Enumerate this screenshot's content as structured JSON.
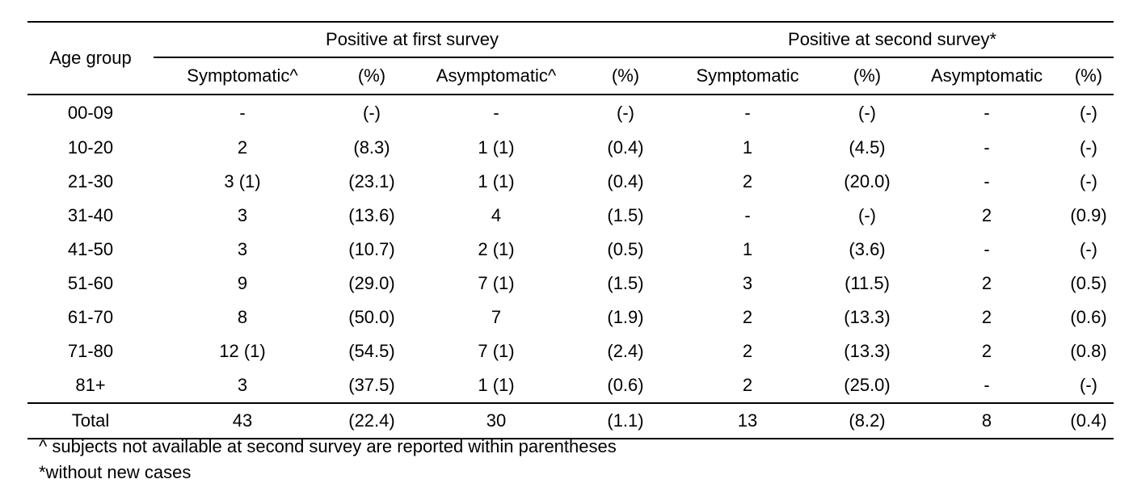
{
  "table": {
    "header": {
      "age_group": "Age group",
      "group_first": "Positive at first survey",
      "group_second": "Positive at second survey*",
      "sub": [
        "Symptomatic^",
        "(%)",
        "Asymptomatic^",
        "(%)",
        "Symptomatic",
        "(%)",
        "Asymptomatic",
        "(%)"
      ]
    },
    "rows": [
      [
        "00-09",
        "-",
        "(-)",
        "-",
        "(-)",
        "-",
        "(-)",
        "-",
        "(-)"
      ],
      [
        "10-20",
        "2",
        "(8.3)",
        "1 (1)",
        "(0.4)",
        "1",
        "(4.5)",
        "-",
        "(-)"
      ],
      [
        "21-30",
        "3 (1)",
        "(23.1)",
        "1 (1)",
        "(0.4)",
        "2",
        "(20.0)",
        "-",
        "(-)"
      ],
      [
        "31-40",
        "3",
        "(13.6)",
        "4",
        "(1.5)",
        "-",
        "(-)",
        "2",
        "(0.9)"
      ],
      [
        "41-50",
        "3",
        "(10.7)",
        "2 (1)",
        "(0.5)",
        "1",
        "(3.6)",
        "-",
        "(-)"
      ],
      [
        "51-60",
        "9",
        "(29.0)",
        "7 (1)",
        "(1.5)",
        "3",
        "(11.5)",
        "2",
        "(0.5)"
      ],
      [
        "61-70",
        "8",
        "(50.0)",
        "7",
        "(1.9)",
        "2",
        "(13.3)",
        "2",
        "(0.6)"
      ],
      [
        "71-80",
        "12 (1)",
        "(54.5)",
        "7 (1)",
        "(2.4)",
        "2",
        "(13.3)",
        "2",
        "(0.8)"
      ],
      [
        "81+",
        "3",
        "(37.5)",
        "1 (1)",
        "(0.6)",
        "2",
        "(25.0)",
        "-",
        "(-)"
      ]
    ],
    "total": [
      "Total",
      "43",
      "(22.4)",
      "30",
      "(1.1)",
      "13",
      "(8.2)",
      "8",
      "(0.4)"
    ]
  },
  "notes": [
    "^ subjects not available at second survey are reported within parentheses",
    "*without new cases"
  ]
}
